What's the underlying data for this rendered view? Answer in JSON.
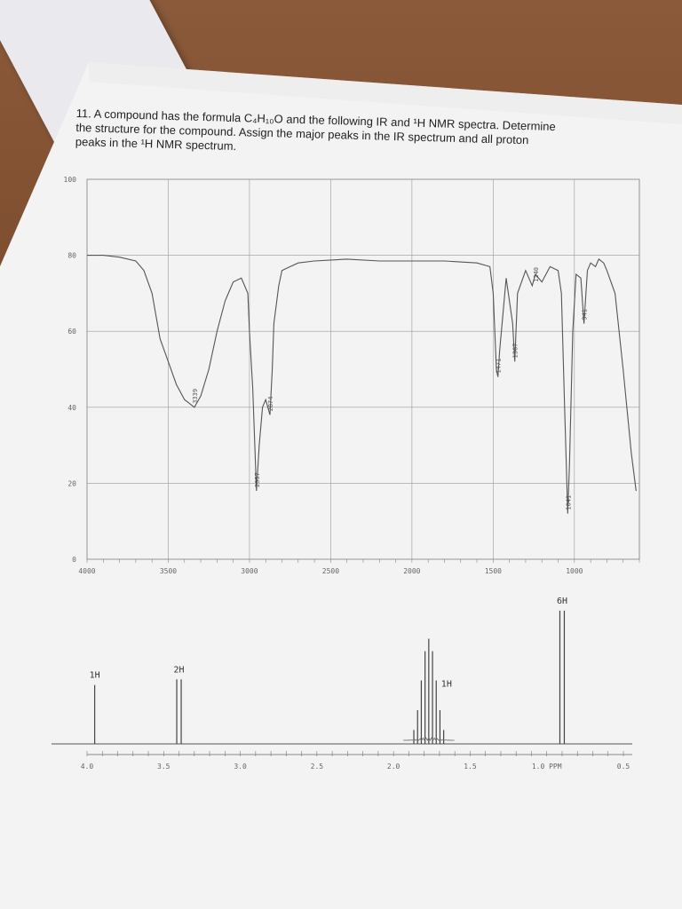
{
  "question": {
    "number": "11.",
    "line1": "A compound has the formula C₄H₁₀O and the following IR and ¹H NMR spectra. Determine",
    "line2": "the structure for the compound. Assign the major peaks in the IR spectrum and all proton",
    "line3": "peaks in the ¹H NMR spectrum."
  },
  "chart_data": [
    {
      "type": "line",
      "title": "",
      "xlabel": "",
      "ylabel": "",
      "x_ticks": [
        "4000",
        "3500",
        "3000",
        "2500",
        "2000",
        "1500",
        "1000"
      ],
      "y_ticks": [
        "100",
        "80",
        "60",
        "40",
        "20",
        "0"
      ],
      "xlim": [
        4000,
        600
      ],
      "ylim": [
        0,
        100
      ],
      "grid": true,
      "series": [
        {
          "x": [
            4000,
            3900,
            3800,
            3700,
            3650,
            3600,
            3550,
            3500,
            3450,
            3400,
            3339,
            3300,
            3250,
            3200,
            3150,
            3100,
            3050,
            3010,
            3000,
            2980,
            2957,
            2940,
            2920,
            2900,
            2874,
            2860,
            2850,
            2820,
            2800,
            2750,
            2700,
            2600,
            2400,
            2200,
            2000,
            1800,
            1600,
            1520,
            1500,
            1480,
            1471,
            1460,
            1420,
            1380,
            1367,
            1350,
            1300,
            1260,
            1240,
            1200,
            1150,
            1100,
            1080,
            1060,
            1050,
            1041,
            1030,
            1010,
            990,
            960,
            941,
            920,
            900,
            870,
            850,
            820,
            800,
            750,
            700,
            650,
            620
          ],
          "y": [
            80,
            80,
            79.5,
            78.5,
            76,
            70,
            58,
            52,
            46,
            42,
            40,
            43,
            50,
            60,
            68,
            73,
            74,
            70,
            60,
            45,
            18,
            30,
            40,
            42,
            38,
            50,
            62,
            72,
            76,
            77,
            78,
            78.5,
            79,
            78.5,
            78.5,
            78.5,
            78,
            77,
            70,
            50,
            48,
            55,
            74,
            62,
            52,
            70,
            76,
            72,
            75,
            73,
            77,
            76,
            70,
            40,
            25,
            12,
            25,
            60,
            75,
            74,
            62,
            76,
            78,
            77,
            79,
            78,
            76,
            70,
            50,
            28,
            18
          ]
        }
      ],
      "annotations": [
        "3339",
        "2957",
        "2874",
        "1471",
        "1367",
        "1240",
        "1041",
        "941"
      ]
    },
    {
      "type": "line",
      "title": "",
      "xlabel": "PPM",
      "x_ticks": [
        "4.0",
        "3.5",
        "3.0",
        "2.5",
        "2.0",
        "1.5",
        "1.0 PPM",
        "0.5"
      ],
      "xlim": [
        4.0,
        0.5
      ],
      "peaks": [
        {
          "ppm": 3.95,
          "height": 0.42,
          "multiplicity": 1,
          "label": "1H"
        },
        {
          "ppm": 3.4,
          "height": 0.46,
          "multiplicity": 2,
          "label": "2H"
        },
        {
          "ppm": 1.77,
          "height": 0.75,
          "multiplicity": 9,
          "label": "1H"
        },
        {
          "ppm": 0.9,
          "height": 0.95,
          "multiplicity": 2,
          "label": "6H"
        }
      ],
      "integration_labels": [
        "1H",
        "2H",
        "1H",
        "6H"
      ]
    }
  ]
}
